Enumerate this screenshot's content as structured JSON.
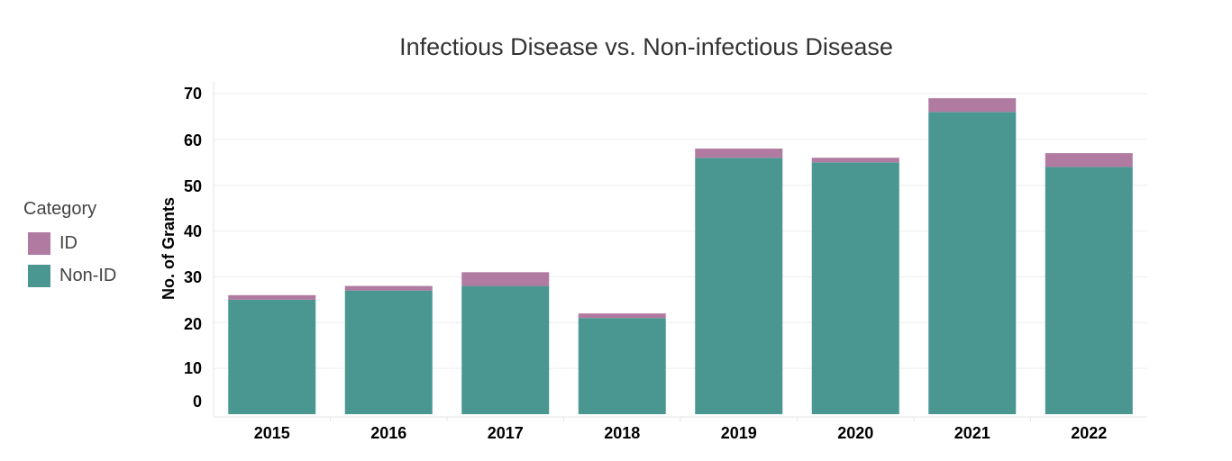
{
  "chart_data": {
    "type": "bar",
    "stacked": true,
    "title": "Infectious Disease vs. Non-infectious Disease",
    "xlabel": "",
    "ylabel": "No. of Grants",
    "categories": [
      "2015",
      "2016",
      "2017",
      "2018",
      "2019",
      "2020",
      "2021",
      "2022"
    ],
    "series": [
      {
        "name": "Non-ID",
        "color": "#4a9792",
        "values": [
          25,
          27,
          28,
          21,
          56,
          55,
          66,
          54
        ]
      },
      {
        "name": "ID",
        "color": "#b07aa1",
        "values": [
          1,
          1,
          3,
          1,
          2,
          1,
          3,
          3
        ]
      }
    ],
    "yticks": [
      "0",
      "10",
      "20",
      "30",
      "40",
      "50",
      "60",
      "70"
    ],
    "ylim": [
      0,
      70
    ],
    "grid": true,
    "legend": {
      "title": "Category",
      "position": "left",
      "items": [
        {
          "label": "ID",
          "color": "#b07aa1"
        },
        {
          "label": "Non-ID",
          "color": "#4a9792"
        }
      ]
    }
  }
}
